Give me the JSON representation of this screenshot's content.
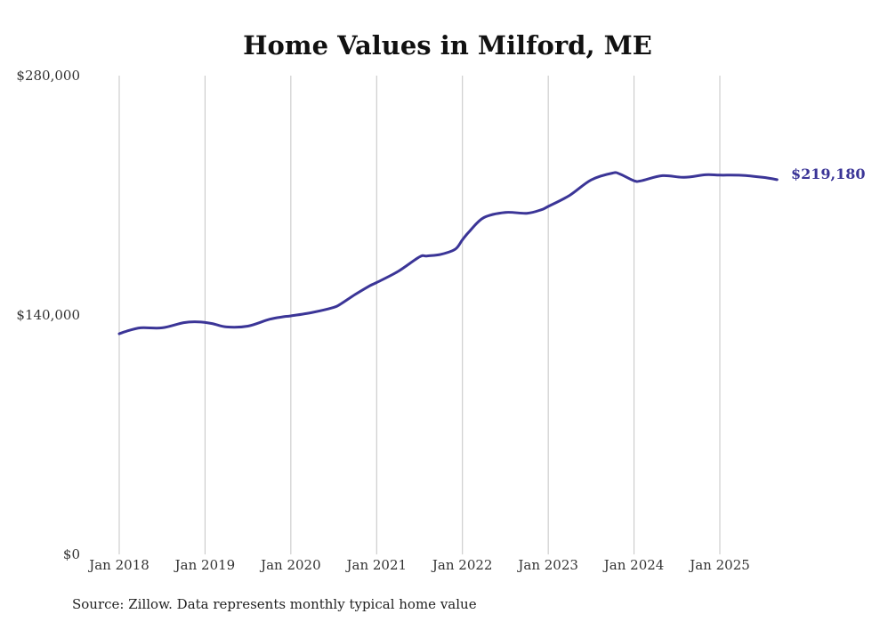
{
  "chart_data": {
    "type": "line",
    "title": "Home Values in Milford, ME",
    "source": "Source: Zillow. Data represents monthly typical home value",
    "ylim": [
      0,
      280000
    ],
    "xlim": [
      2018.0,
      2025.75
    ],
    "y_ticks": [
      {
        "value": 0,
        "label": "$0"
      },
      {
        "value": 140000,
        "label": "$140,000"
      },
      {
        "value": 280000,
        "label": "$280,000"
      }
    ],
    "x_ticks": [
      {
        "value": 2018,
        "label": "Jan 2018"
      },
      {
        "value": 2019,
        "label": "Jan 2019"
      },
      {
        "value": 2020,
        "label": "Jan 2020"
      },
      {
        "value": 2021,
        "label": "Jan 2021"
      },
      {
        "value": 2022,
        "label": "Jan 2022"
      },
      {
        "value": 2023,
        "label": "Jan 2023"
      },
      {
        "value": 2024,
        "label": "Jan 2024"
      },
      {
        "value": 2025,
        "label": "Jan 2025"
      }
    ],
    "grid": "vertical",
    "line_color": "#3b3597",
    "end_label": "$219,180",
    "series": [
      {
        "name": "Typical home value",
        "x": [
          2018.0,
          2018.083,
          2018.25,
          2018.5,
          2018.75,
          2018.917,
          2019.083,
          2019.25,
          2019.5,
          2019.75,
          2019.917,
          2020.0,
          2020.25,
          2020.5,
          2020.583,
          2020.75,
          2020.917,
          2021.0,
          2021.25,
          2021.5,
          2021.583,
          2021.75,
          2021.917,
          2022.0,
          2022.083,
          2022.25,
          2022.5,
          2022.75,
          2022.917,
          2023.0,
          2023.25,
          2023.5,
          2023.75,
          2023.833,
          2024.0,
          2024.083,
          2024.333,
          2024.583,
          2024.833,
          2025.0,
          2025.25,
          2025.5,
          2025.667
        ],
        "values": [
          129000,
          130500,
          132500,
          132500,
          135500,
          136000,
          135000,
          133000,
          133500,
          137500,
          139000,
          139500,
          141500,
          144500,
          146500,
          152000,
          157000,
          159000,
          165500,
          174000,
          174500,
          175500,
          178500,
          184000,
          189000,
          197000,
          200000,
          199500,
          201500,
          203500,
          210000,
          219000,
          223000,
          222500,
          218500,
          218500,
          221500,
          220500,
          222000,
          221800,
          221700,
          220500,
          219180
        ]
      }
    ]
  }
}
